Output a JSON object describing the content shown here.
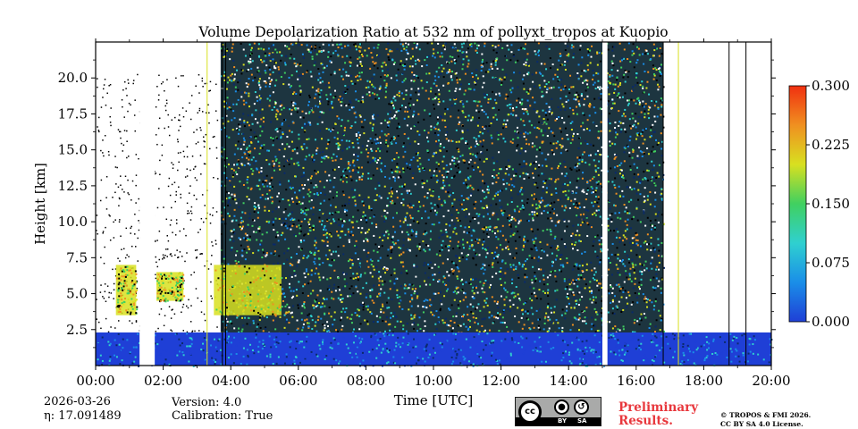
{
  "chart_data": {
    "type": "heatmap",
    "title": "Volume Depolarization Ratio at 532 nm of pollyxt_tropos at Kuopio",
    "xlabel": "Time [UTC]",
    "ylabel": "Height [km]",
    "xlim": [
      0,
      20
    ],
    "ylim": [
      0,
      22.5
    ],
    "x_ticks": [
      0,
      2,
      4,
      6,
      8,
      10,
      12,
      14,
      16,
      18,
      20
    ],
    "x_tick_labels": [
      "00:00",
      "02:00",
      "04:00",
      "06:00",
      "08:00",
      "10:00",
      "12:00",
      "14:00",
      "16:00",
      "18:00",
      "20:00"
    ],
    "y_ticks": [
      2.5,
      5.0,
      7.5,
      10.0,
      12.5,
      15.0,
      17.5,
      20.0
    ],
    "y_tick_labels": [
      "2.5",
      "5.0",
      "7.5",
      "10.0",
      "12.5",
      "15.0",
      "17.5",
      "20.0"
    ],
    "colorbar": {
      "vmin": 0.0,
      "vmax": 0.3,
      "ticks": [
        0.0,
        0.075,
        0.15,
        0.225,
        0.3
      ],
      "tick_labels": [
        "0.000",
        "0.075",
        "0.150",
        "0.225",
        "0.300"
      ],
      "colors": [
        "#1f3fd6",
        "#1a8ee8",
        "#2fd0d0",
        "#40d060",
        "#d8e020",
        "#f09020",
        "#f03010"
      ]
    },
    "regions": [
      {
        "name": "boundary layer (low depolarization)",
        "t_start": 0,
        "t_end": 20,
        "h_bottom": 0,
        "h_top": 2.3,
        "value": 0.03
      },
      {
        "name": "elevated aerosol layer",
        "t_start": 0.6,
        "t_end": 1.2,
        "h_bottom": 3.5,
        "h_top": 7.0,
        "value": 0.19
      },
      {
        "name": "elevated aerosol layer",
        "t_start": 1.8,
        "t_end": 2.6,
        "h_bottom": 4.5,
        "h_top": 6.5,
        "value": 0.19
      },
      {
        "name": "elevated aerosol layer",
        "t_start": 3.5,
        "t_end": 5.5,
        "h_bottom": 3.5,
        "h_top": 7.0,
        "value": 0.2
      },
      {
        "name": "noisy signal region",
        "t_start": 3.7,
        "t_end": 16.8,
        "h_bottom": 2.3,
        "h_top": 22.5,
        "value": 0.12
      }
    ],
    "data_gaps": [
      {
        "t_start": 1.3,
        "t_end": 1.75
      },
      {
        "t_start": 15.0,
        "t_end": 15.15
      }
    ]
  },
  "footer": {
    "date": "2026-03-26",
    "eta": "η: 17.091489",
    "version": "Version: 4.0",
    "calibration": "Calibration: True",
    "preliminary_line1": "Preliminary",
    "preliminary_line2": "Results.",
    "copyright_line1": "© TROPOS & FMI 2026.",
    "copyright_line2": "CC BY SA 4.0 License.",
    "license_badge": {
      "cc": "cc",
      "by": "BY",
      "sa": "SA"
    }
  }
}
